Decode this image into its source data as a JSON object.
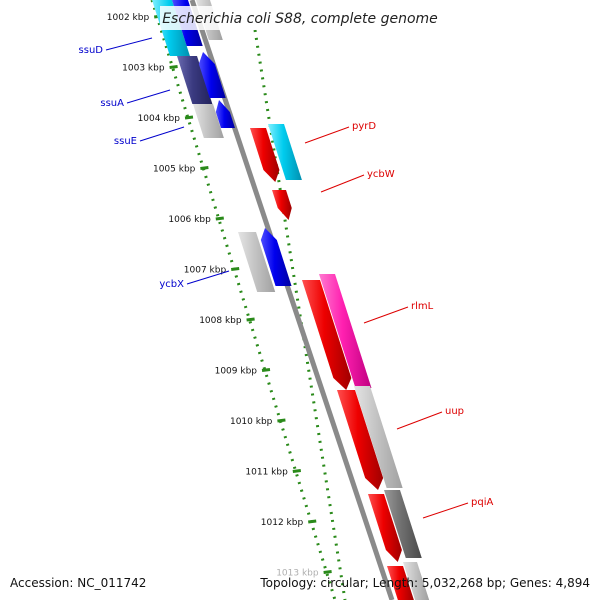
{
  "title": "Escherichia coli S88, complete genome",
  "accession": "Accession: NC_011742",
  "summary": "Topology: circular; Length: 5,032,268 bp; Genes: 4,894",
  "colors": {
    "background": "#ffffff",
    "backbone": "#8a8a8a",
    "ruler": "#2a8a1a",
    "forward_label": "#dd0000",
    "reverse_label": "#0000cc"
  },
  "ruler_ticks": [
    "1002 kbp",
    "1003 kbp",
    "1004 kbp",
    "1005 kbp",
    "1006 kbp",
    "1007 kbp",
    "1008 kbp",
    "1009 kbp",
    "1010 kbp",
    "1011 kbp",
    "1012 kbp",
    "1013 kbp"
  ],
  "genes": [
    {
      "name": "ssuD",
      "strand": "reverse",
      "color": "#00ccee"
    },
    {
      "name": "ssuA",
      "strand": "reverse",
      "color": "#3a3a80"
    },
    {
      "name": "ssuE",
      "strand": "reverse",
      "color": "#c0c0c0"
    },
    {
      "name": "pyrD",
      "strand": "forward",
      "color": "#ee0000"
    },
    {
      "name": "ycbW",
      "strand": "forward",
      "color": "#ee0000"
    },
    {
      "name": "ycbX",
      "strand": "reverse",
      "color": "#c0c0c0"
    },
    {
      "name": "rlmL",
      "strand": "forward",
      "color": "#ee0000"
    },
    {
      "name": "uup",
      "strand": "forward",
      "color": "#c0c0c0"
    },
    {
      "name": "pqiA",
      "strand": "forward",
      "color": "#777777"
    }
  ]
}
